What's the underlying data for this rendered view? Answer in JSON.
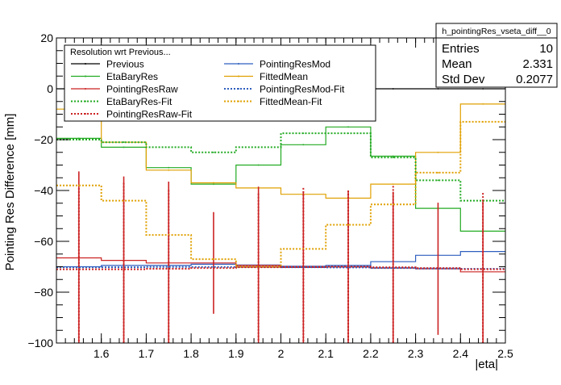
{
  "chart_data": {
    "type": "line",
    "title": "",
    "xlabel": "|eta|",
    "ylabel": "Pointing Res Difference [mm]",
    "xlim": [
      1.5,
      2.5
    ],
    "ylim": [
      -100,
      20
    ],
    "x_ticks": [
      1.6,
      1.7,
      1.8,
      1.9,
      2.0,
      2.1,
      2.2,
      2.3,
      2.4,
      2.5
    ],
    "x_tick_labels": [
      "1.6",
      "1.7",
      "1.8",
      "1.9",
      "2",
      "2.1",
      "2.2",
      "2.3",
      "2.4",
      "2.5"
    ],
    "y_ticks": [
      -100,
      -80,
      -60,
      -40,
      -20,
      0,
      20
    ],
    "y_tick_labels": [
      "−100",
      "−80",
      "−60",
      "−40",
      "−20",
      "0",
      "20"
    ],
    "bin_edges": [
      1.5,
      1.6,
      1.7,
      1.8,
      1.9,
      2.0,
      2.1,
      2.2,
      2.3,
      2.4,
      2.5
    ],
    "bin_centers": [
      1.55,
      1.65,
      1.75,
      1.85,
      1.95,
      2.05,
      2.15,
      2.25,
      2.35,
      2.45
    ],
    "legend": {
      "title": "Resolution wrt Previous...",
      "placement": "top-left",
      "columns": [
        [
          "Previous",
          "EtaBaryRes",
          "PointingResRaw",
          "EtaBaryRes-Fit",
          "PointingResRaw-Fit"
        ],
        [
          "PointingResMod",
          "FittedMean",
          "PointingResMod-Fit",
          "FittedMean-Fit"
        ]
      ]
    },
    "stats_box": {
      "title": "h_pointingRes_vseta_diff__0",
      "rows": [
        {
          "label": "Entries",
          "value": "10"
        },
        {
          "label": "Mean",
          "value": "2.331"
        },
        {
          "label": "Std Dev",
          "value": "0.2077"
        }
      ]
    },
    "series": [
      {
        "name": "Previous",
        "color": "#000000",
        "style": "solid",
        "values": [
          0,
          0,
          0,
          0,
          0,
          0,
          0,
          0,
          0,
          0
        ],
        "errors": [
          0,
          0,
          0,
          0,
          0,
          0,
          0,
          0,
          0,
          0
        ]
      },
      {
        "name": "PointingResMod",
        "color": "#2f5fbf",
        "style": "solid",
        "values": [
          -70,
          -69.5,
          -69.5,
          -69,
          -69.3,
          -69.8,
          -69.5,
          -68,
          -65.5,
          -64
        ],
        "errors": [
          0,
          0,
          0,
          0,
          0,
          0,
          0,
          0,
          0,
          0
        ]
      },
      {
        "name": "EtaBaryRes",
        "color": "#22aa22",
        "style": "solid",
        "values": [
          -19.5,
          -23,
          -31,
          -37.5,
          -30,
          -22,
          -15,
          -26.5,
          -47,
          -56
        ],
        "errors": [
          0,
          0,
          0,
          0,
          0,
          0,
          0,
          0,
          0,
          0
        ]
      },
      {
        "name": "FittedMean",
        "color": "#e0a000",
        "style": "solid",
        "values": [
          -8,
          -21,
          -32,
          -37,
          -39,
          -41.5,
          -43,
          -37.5,
          -25,
          -6
        ],
        "errors": [
          0,
          0,
          0,
          0,
          0,
          0,
          0,
          0,
          0,
          0
        ]
      },
      {
        "name": "PointingResRaw",
        "color": "#cc2222",
        "style": "solid",
        "values": [
          -66.5,
          -67.5,
          -68.5,
          -68.5,
          -69.5,
          -70.3,
          -70,
          -70.5,
          -70.8,
          -72
        ],
        "errors": [
          34,
          33,
          32,
          20,
          31,
          30,
          30,
          30,
          26,
          28
        ]
      },
      {
        "name": "PointingResMod-Fit",
        "color": "#2f5fbf",
        "style": "dotted",
        "values": [
          -70.2,
          -70.2,
          -70.1,
          -70.1,
          -70.1,
          -70.2,
          -70.3,
          -70.5,
          -70.7,
          -70.8
        ],
        "errors": [
          0,
          0,
          0,
          0,
          0,
          0,
          0,
          0,
          0,
          0
        ]
      },
      {
        "name": "EtaBaryRes-Fit",
        "color": "#22aa22",
        "style": "dotted",
        "values": [
          -20,
          -21,
          -23,
          -25,
          -23,
          -17.5,
          -17.5,
          -27,
          -36,
          -44
        ],
        "errors": [
          0,
          0,
          0,
          0,
          0,
          0,
          0,
          0,
          0,
          0
        ]
      },
      {
        "name": "FittedMean-Fit",
        "color": "#e0a000",
        "style": "dotted",
        "values": [
          -38,
          -44,
          -57.5,
          -67,
          -70,
          -63,
          -53.5,
          -45.5,
          -33,
          -13
        ],
        "errors": [
          0,
          0,
          0,
          0,
          0,
          0,
          0,
          0,
          0,
          0
        ]
      },
      {
        "name": "PointingResRaw-Fit",
        "color": "#cc2222",
        "style": "dotted",
        "values": [
          -71,
          -71,
          -70.8,
          -70.5,
          -70.2,
          -70,
          -70,
          -70.2,
          -70.5,
          -71
        ],
        "errors": [
          32,
          34,
          31,
          0,
          29,
          31,
          30,
          32,
          0,
          30
        ]
      }
    ]
  }
}
